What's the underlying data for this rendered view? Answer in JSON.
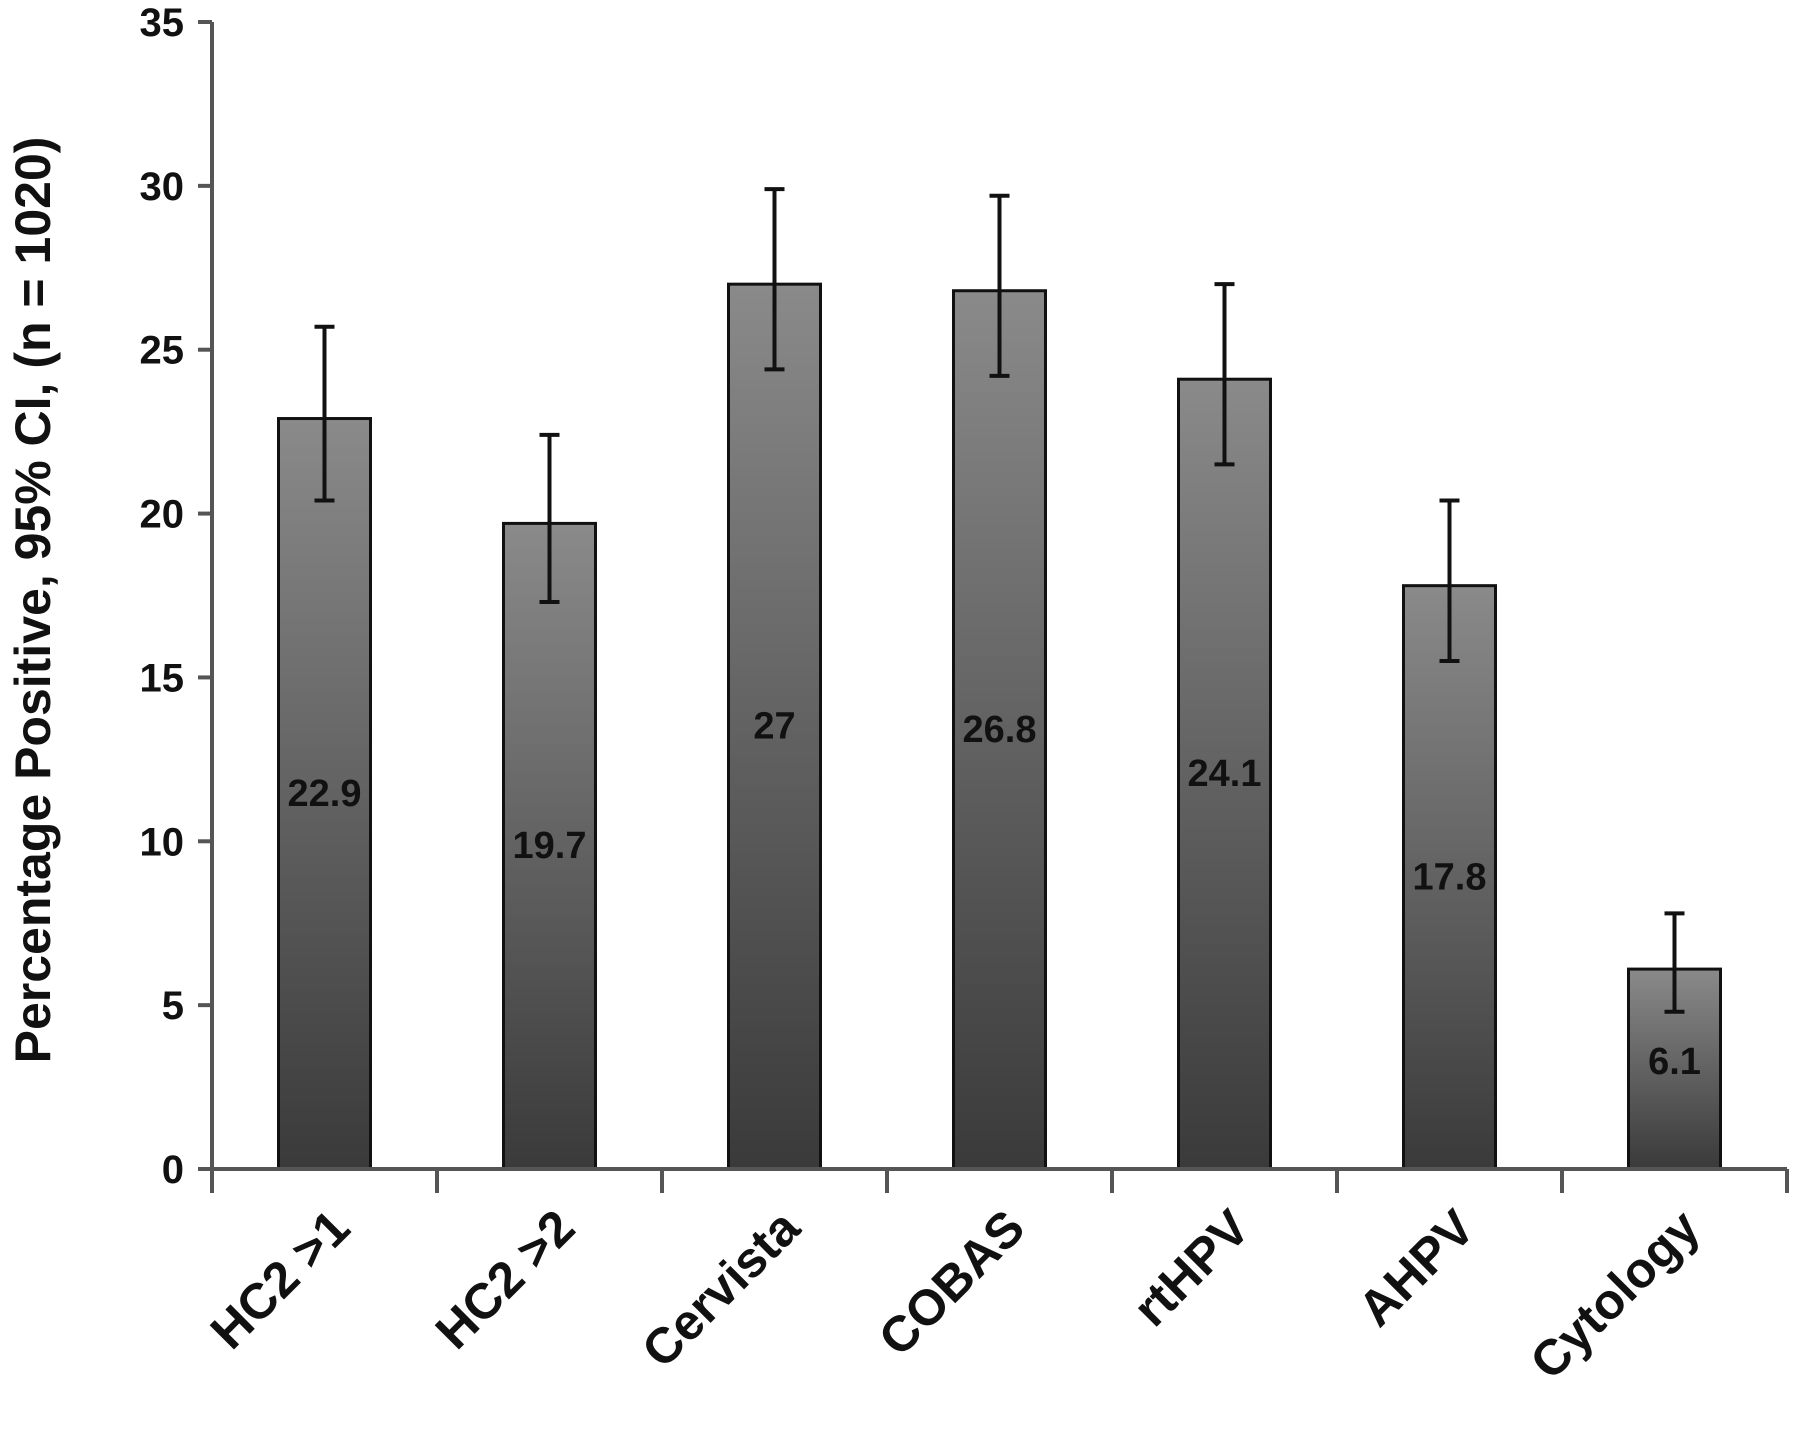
{
  "chart_data": {
    "type": "bar",
    "title": "",
    "xlabel": "",
    "ylabel": "Percentage Positive, 95% CI, (n = 1020)",
    "categories": [
      "HC2 >1",
      "HC2 >2",
      "Cervista",
      "COBAS",
      "rtHPV",
      "AHPV",
      "Cytology"
    ],
    "values": [
      22.9,
      19.7,
      27,
      26.8,
      24.1,
      17.8,
      6.1
    ],
    "data_labels": [
      "22.9",
      "19.7",
      "27",
      "26.8",
      "24.1",
      "17.8",
      "6.1"
    ],
    "error_low": [
      20.4,
      17.3,
      24.4,
      24.2,
      21.5,
      15.5,
      4.8
    ],
    "error_high": [
      25.7,
      22.4,
      29.9,
      29.7,
      27.0,
      20.4,
      7.8
    ],
    "ylim": [
      0,
      35
    ],
    "yticks": [
      0,
      5,
      10,
      15,
      20,
      25,
      30,
      35
    ],
    "ytick_labels": [
      "0",
      "5",
      "10",
      "15",
      "20",
      "25",
      "30",
      "35"
    ],
    "grid": false,
    "legend": "none",
    "colors": {
      "bar_top": "#8a8a8a",
      "bar_bottom": "#3a3a3a",
      "bar_stroke": "#111111",
      "axis": "#555555",
      "text": "#111111"
    }
  }
}
